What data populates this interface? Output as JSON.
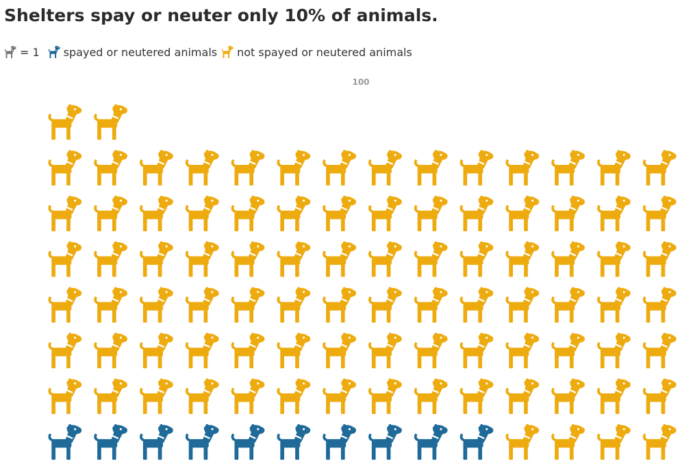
{
  "title": "Shelters spay or neuter only 10% of animals.",
  "legend": {
    "unit_equals": "= 1",
    "unit_icon_color": "#777777",
    "spayed_label": "spayed or neutered animals",
    "not_spayed_label": "not spayed or neutered animals"
  },
  "colors": {
    "spayed": "#1f6a99",
    "not_spayed": "#eeab0f"
  },
  "icon": "dog-icon",
  "chart_data": {
    "type": "pictograph",
    "total_label": "100",
    "total": 100,
    "units_per_icon": 1,
    "series": [
      {
        "name": "spayed or neutered animals",
        "value": 10
      },
      {
        "name": "not spayed or neutered animals",
        "value": 90
      }
    ],
    "icons_per_row": 14
  }
}
